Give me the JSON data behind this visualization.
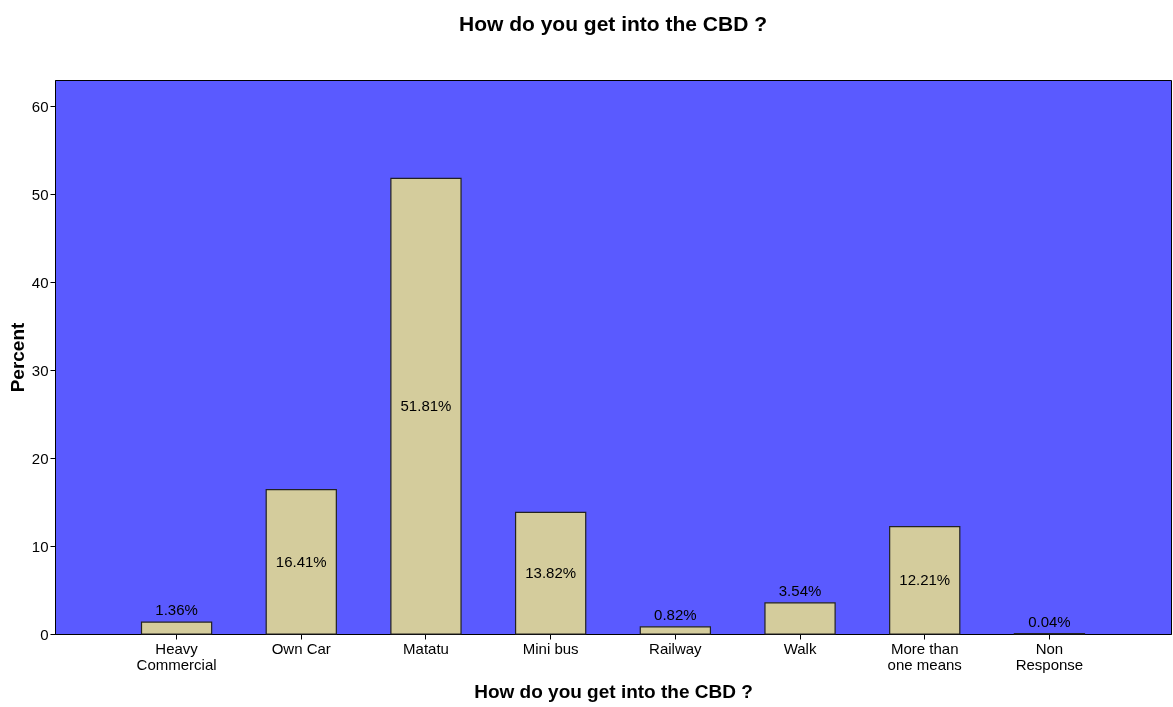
{
  "chart_data": {
    "type": "bar",
    "title": "How do you get into the CBD ?",
    "xlabel": "How do you get into the CBD ?",
    "ylabel": "Percent",
    "categories": [
      "Heavy Commercial",
      "Own Car",
      "Matatu",
      "Mini bus",
      "Railway",
      "Walk",
      "More than one means",
      "Non Response"
    ],
    "values": [
      1.36,
      16.41,
      51.81,
      13.82,
      0.82,
      3.54,
      12.21,
      0.04
    ],
    "value_labels": [
      "1.36%",
      "16.41%",
      "51.81%",
      "13.82%",
      "0.82%",
      "3.54%",
      "12.21%",
      "0.04%"
    ],
    "color": "#d4cc9c",
    "ylim": [
      0,
      63
    ],
    "yticks": [
      0,
      10,
      20,
      30,
      40,
      50,
      60
    ],
    "grid": false
  }
}
